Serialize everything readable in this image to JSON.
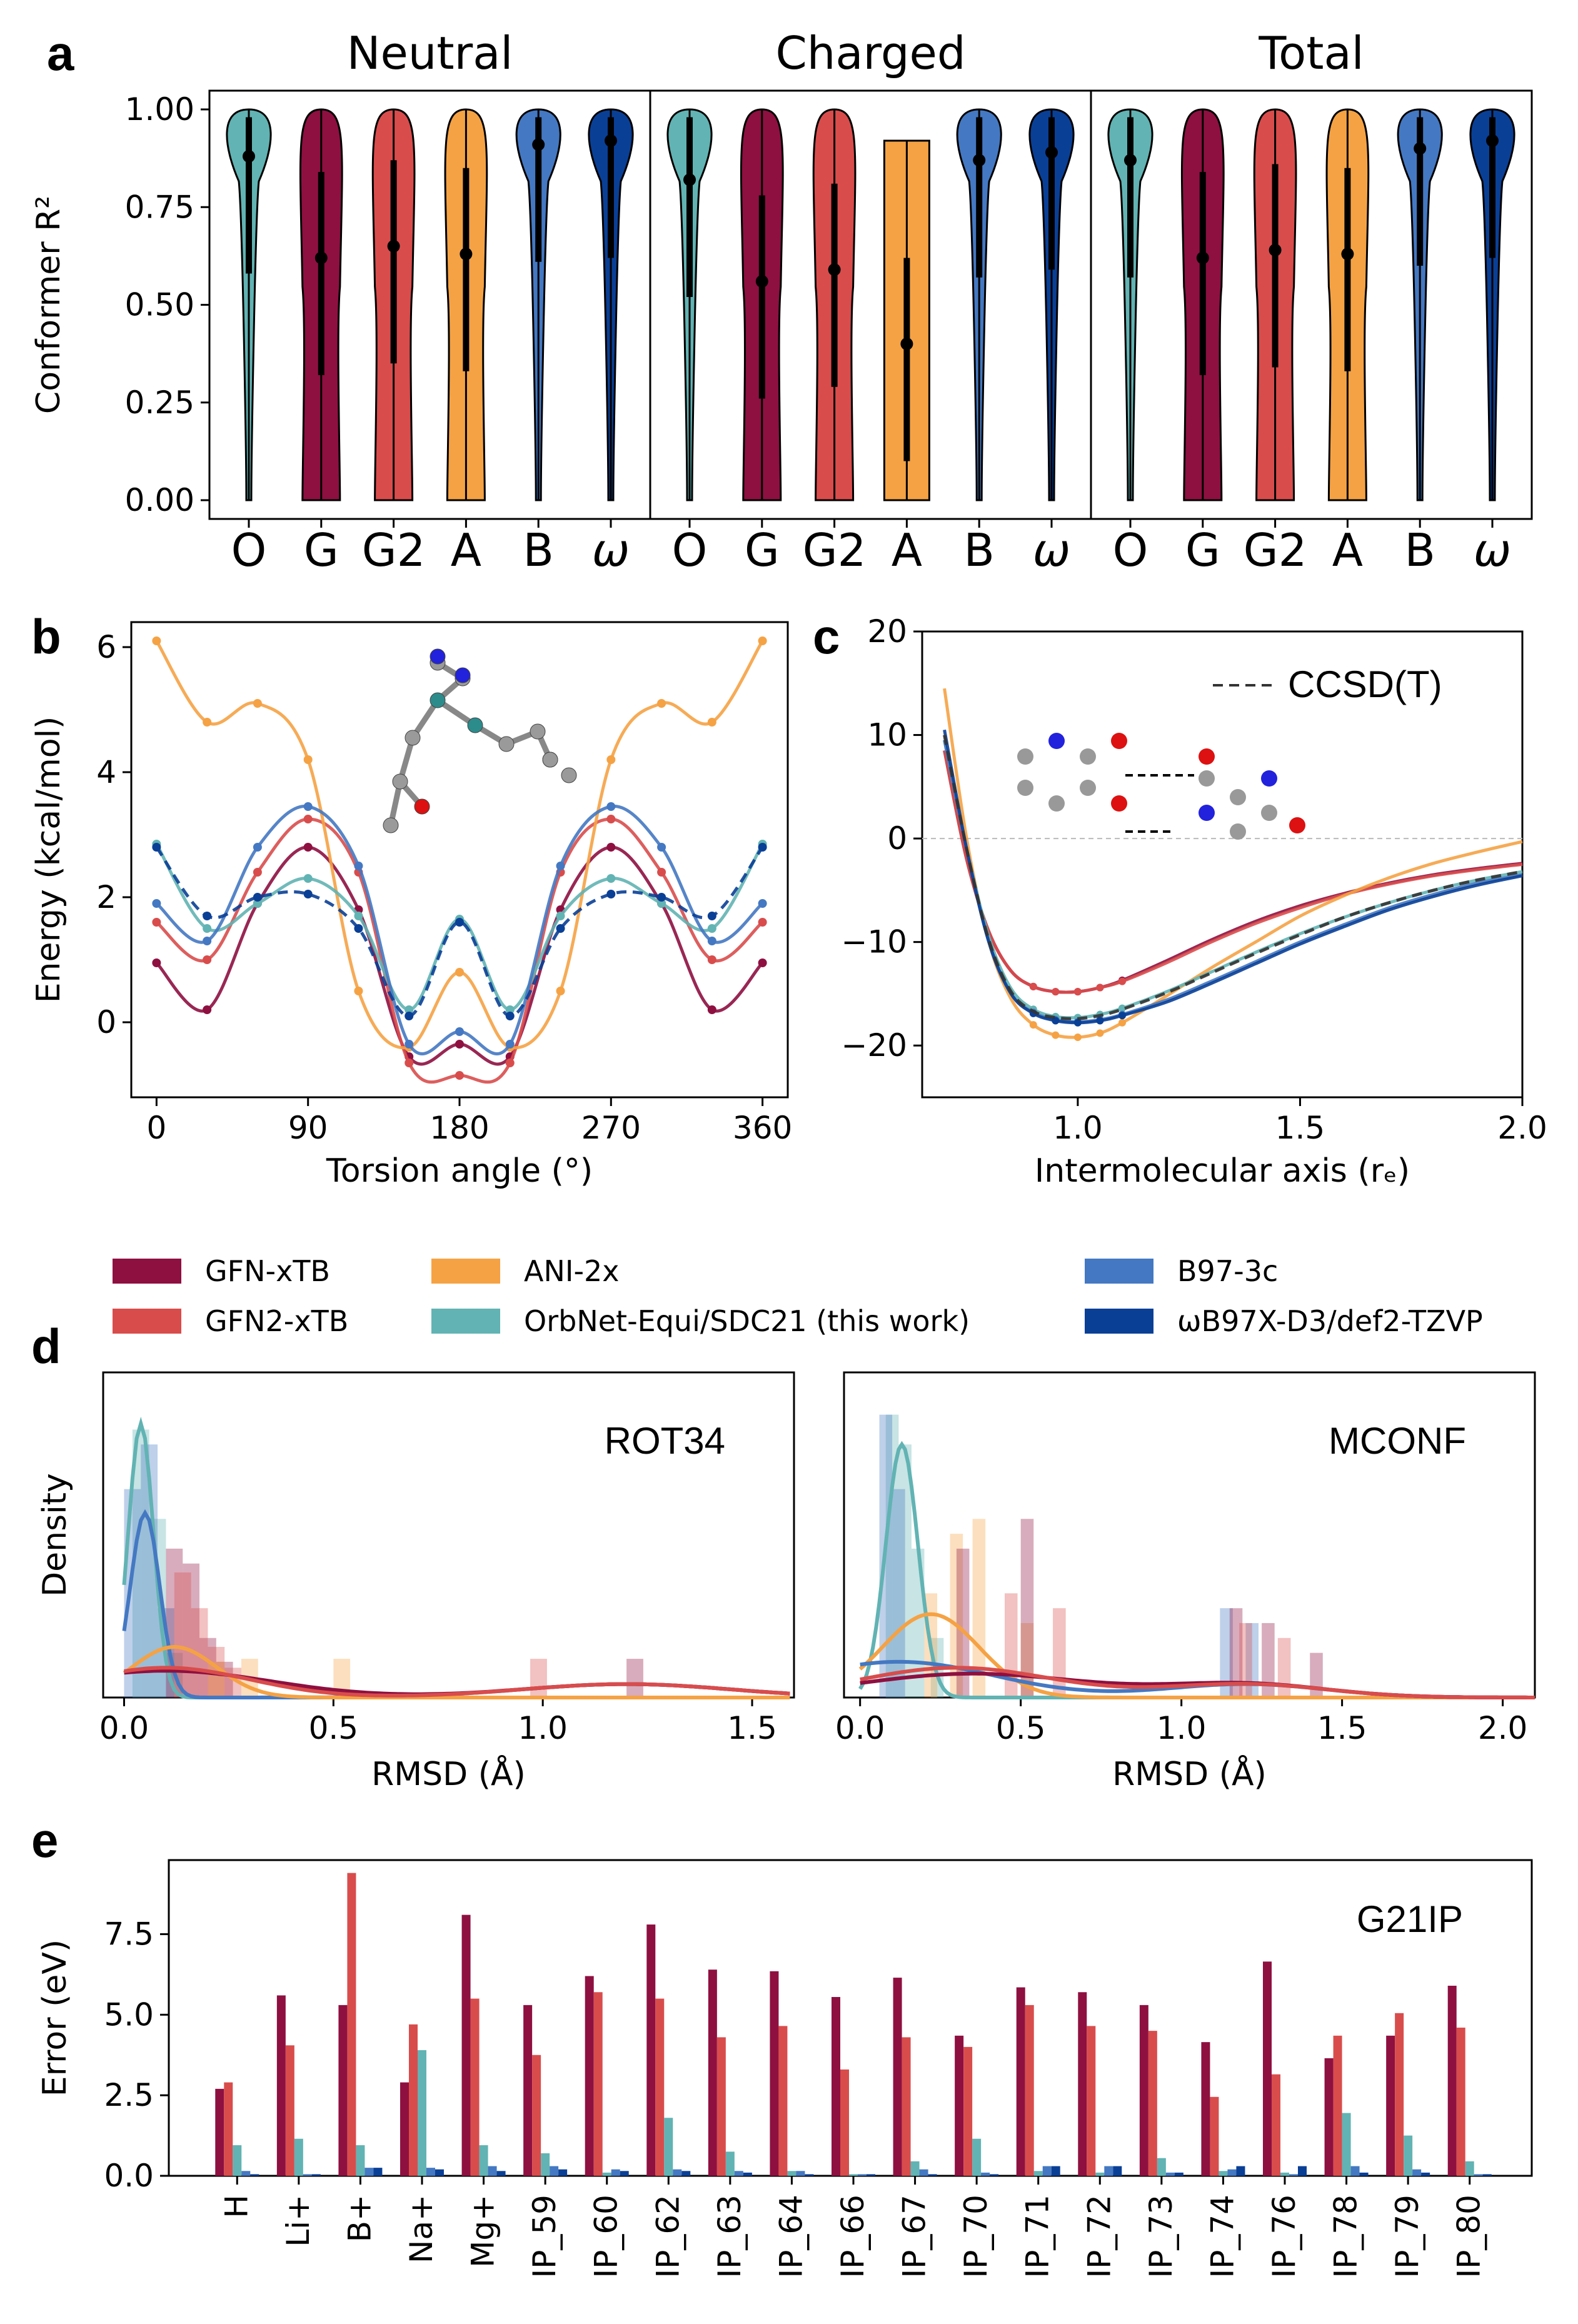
{
  "colors": {
    "GFN-xTB": "#8e1040",
    "GFN2-xTB": "#d94c4c",
    "ANI-2x": "#f5a244",
    "OrbNet": "#62b3b3",
    "B97-3c": "#4478c2",
    "wB97X": "#0a3f96"
  },
  "legend": {
    "items": [
      {
        "key": "GFN-xTB",
        "label": "GFN-xTB"
      },
      {
        "key": "GFN2-xTB",
        "label": "GFN2-xTB"
      },
      {
        "key": "ANI-2x",
        "label": "ANI-2x"
      },
      {
        "key": "OrbNet",
        "label": "OrbNet-Equi/SDC21 (this work)"
      },
      {
        "key": "B97-3c",
        "label": "B97-3c"
      },
      {
        "key": "wB97X",
        "label": "ωB97X-D3/def2-TZVP"
      }
    ]
  },
  "chart_data": [
    {
      "panel": "a",
      "type": "violin",
      "ylabel": "Conformer R²",
      "ylim": [
        0,
        1
      ],
      "yticks": [
        "0.00",
        "0.25",
        "0.50",
        "0.75",
        "1.00"
      ],
      "groups": [
        "Neutral",
        "Charged",
        "Total"
      ],
      "categories": [
        "O",
        "G",
        "G2",
        "A",
        "B",
        "ω"
      ],
      "medians": {
        "Neutral": [
          0.88,
          0.62,
          0.65,
          0.63,
          0.91,
          0.92
        ],
        "Charged": [
          0.82,
          0.56,
          0.59,
          0.4,
          0.87,
          0.89
        ],
        "Total": [
          0.87,
          0.62,
          0.64,
          0.63,
          0.9,
          0.92
        ]
      }
    },
    {
      "panel": "b",
      "type": "line",
      "xlabel": "Torsion angle (°)",
      "ylabel": "Energy (kcal/mol)",
      "xlim": [
        0,
        360
      ],
      "ylim": [
        -1.2,
        6.4
      ],
      "xticks": [
        0,
        90,
        180,
        270,
        360
      ],
      "yticks": [
        0,
        2,
        4,
        6
      ],
      "x": [
        0,
        30,
        60,
        90,
        120,
        150,
        180,
        210,
        240,
        270,
        300,
        330,
        360
      ],
      "series": [
        {
          "key": "GFN-xTB",
          "values": [
            0.95,
            0.2,
            1.9,
            2.8,
            1.8,
            -0.55,
            -0.35,
            -0.55,
            1.8,
            2.8,
            1.9,
            0.2,
            0.95
          ]
        },
        {
          "key": "GFN2-xTB",
          "values": [
            1.6,
            1.0,
            2.4,
            3.25,
            2.4,
            -0.65,
            -0.85,
            -0.65,
            2.4,
            3.25,
            2.4,
            1.0,
            1.6
          ]
        },
        {
          "key": "ANI-2x",
          "values": [
            6.1,
            4.8,
            5.1,
            4.2,
            0.5,
            -0.4,
            0.8,
            -0.4,
            0.5,
            4.2,
            5.1,
            4.8,
            6.1
          ]
        },
        {
          "key": "OrbNet",
          "values": [
            2.85,
            1.5,
            1.9,
            2.3,
            1.7,
            0.2,
            1.65,
            0.2,
            1.7,
            2.3,
            1.9,
            1.5,
            2.85
          ]
        },
        {
          "key": "B97-3c",
          "values": [
            1.9,
            1.3,
            2.8,
            3.45,
            2.5,
            -0.35,
            -0.15,
            -0.35,
            2.5,
            3.45,
            2.8,
            1.3,
            1.9
          ]
        },
        {
          "key": "wB97X",
          "values": [
            2.8,
            1.7,
            2.0,
            2.05,
            1.5,
            0.1,
            1.6,
            0.1,
            1.5,
            2.05,
            2.0,
            1.7,
            2.8
          ],
          "dashed": true
        }
      ]
    },
    {
      "panel": "c",
      "type": "line",
      "xlabel": "Intermolecular axis (rₑ)",
      "xlim": [
        0.65,
        2.0
      ],
      "ylim": [
        -25,
        20
      ],
      "xticks": [
        "1.0",
        "1.5",
        "2.0"
      ],
      "yticks": [
        "−20",
        "−10",
        "0",
        "10",
        "20"
      ],
      "legend_label": "CCSD(T)",
      "x": [
        0.7,
        0.75,
        0.8,
        0.85,
        0.9,
        0.95,
        1.0,
        1.05,
        1.1,
        1.2,
        1.3,
        1.4,
        1.5,
        1.6,
        1.7,
        1.8,
        1.9,
        2.0
      ],
      "series": [
        {
          "key": "GFN-xTB",
          "values": [
            8.5,
            -2,
            -9,
            -12.8,
            -14.3,
            -14.8,
            -14.8,
            -14.4,
            -13.7,
            -11.8,
            -9.8,
            -8.0,
            -6.5,
            -5.3,
            -4.3,
            -3.5,
            -2.9,
            -2.4
          ]
        },
        {
          "key": "GFN2-xTB",
          "values": [
            8.5,
            -2,
            -9,
            -12.8,
            -14.3,
            -14.8,
            -14.8,
            -14.4,
            -13.8,
            -12.0,
            -10.0,
            -8.2,
            -6.7,
            -5.4,
            -4.4,
            -3.6,
            -3.0,
            -2.5
          ]
        },
        {
          "key": "ANI-2x",
          "values": [
            14.5,
            0,
            -10,
            -15.5,
            -18,
            -19,
            -19.2,
            -18.8,
            -17.8,
            -15.2,
            -12.5,
            -10,
            -7.5,
            -5.5,
            -3.8,
            -2.4,
            -1.3,
            -0.3
          ]
        },
        {
          "key": "OrbNet",
          "values": [
            9.5,
            -1,
            -9.5,
            -14.5,
            -16.5,
            -17.2,
            -17.3,
            -17.0,
            -16.4,
            -14.8,
            -12.9,
            -11.0,
            -9.2,
            -7.6,
            -6.2,
            -5.0,
            -4.0,
            -3.2
          ]
        },
        {
          "key": "B97-3c",
          "values": [
            9.5,
            -1,
            -10,
            -15,
            -16.8,
            -17.5,
            -17.7,
            -17.5,
            -17.0,
            -15.6,
            -13.8,
            -11.9,
            -10.0,
            -8.3,
            -6.7,
            -5.4,
            -4.3,
            -3.5
          ]
        },
        {
          "key": "wB97X",
          "values": [
            10.5,
            -1,
            -10,
            -15,
            -16.9,
            -17.6,
            -17.8,
            -17.6,
            -17.1,
            -15.8,
            -14.0,
            -12.1,
            -10.2,
            -8.5,
            -6.9,
            -5.6,
            -4.5,
            -3.6
          ]
        },
        {
          "key": "CCSD(T)",
          "values": [
            10,
            -1,
            -9.8,
            -14.8,
            -16.7,
            -17.3,
            -17.4,
            -17.1,
            -16.5,
            -14.9,
            -13.0,
            -11.1,
            -9.3,
            -7.6,
            -6.2,
            -5.0,
            -4.0,
            -3.2
          ],
          "dashed": true
        }
      ]
    },
    {
      "panel": "d-left",
      "type": "density",
      "title": "ROT34",
      "xlabel": "RMSD (Å)",
      "ylabel": "Density",
      "xlim": [
        -0.05,
        1.6
      ],
      "xticks": [
        "0.0",
        "0.5",
        "1.0",
        "1.5"
      ],
      "hist": [
        {
          "key": "OrbNet",
          "x": [
            0.02,
            0.06,
            0.1
          ],
          "h": [
            0.9,
            0.6,
            0.15
          ]
        },
        {
          "key": "B97-3c",
          "x": [
            0.0,
            0.04,
            0.08
          ],
          "h": [
            0.7,
            0.85,
            0.3
          ]
        },
        {
          "key": "GFN-xTB",
          "x": [
            0.1,
            0.14,
            0.18,
            0.22,
            1.2
          ],
          "h": [
            0.5,
            0.45,
            0.2,
            0.12,
            0.13
          ]
        },
        {
          "key": "GFN2-xTB",
          "x": [
            0.12,
            0.16,
            0.2,
            0.24,
            0.97
          ],
          "h": [
            0.42,
            0.3,
            0.17,
            0.1,
            0.13
          ]
        },
        {
          "key": "ANI-2x",
          "x": [
            0.2,
            0.28,
            0.5
          ],
          "h": [
            0.12,
            0.13,
            0.13
          ]
        }
      ],
      "kde": [
        {
          "key": "OrbNet",
          "peak_x": 0.04,
          "peak": 0.92,
          "width": 0.03
        },
        {
          "key": "B97-3c",
          "peak_x": 0.05,
          "peak": 0.62,
          "width": 0.035
        },
        {
          "key": "ANI-2x",
          "peak_x": 0.12,
          "peak": 0.17,
          "width": 0.1
        },
        {
          "key": "GFN-xTB",
          "peak_x": 0.1,
          "peak": 0.09,
          "width": 0.25
        },
        {
          "key": "GFN2-xTB",
          "peak_x": 0.1,
          "peak": 0.1,
          "width": 0.2
        }
      ]
    },
    {
      "panel": "d-right",
      "type": "density",
      "title": "MCONF",
      "xlabel": "RMSD (Å)",
      "xlim": [
        -0.05,
        2.1
      ],
      "xticks": [
        "0.0",
        "0.5",
        "1.0",
        "1.5",
        "2.0"
      ],
      "hist": [
        {
          "key": "OrbNet",
          "x": [
            0.08,
            0.12,
            0.16,
            0.22
          ],
          "h": [
            0.95,
            0.85,
            0.5,
            0.2
          ]
        },
        {
          "key": "B97-3c",
          "x": [
            0.06,
            0.1,
            1.12,
            1.2
          ],
          "h": [
            0.95,
            0.7,
            0.3,
            0.25
          ]
        },
        {
          "key": "ANI-2x",
          "x": [
            0.2,
            0.28,
            0.35,
            0.5
          ],
          "h": [
            0.35,
            0.55,
            0.6,
            0.25
          ]
        },
        {
          "key": "GFN-xTB",
          "x": [
            0.3,
            0.5,
            1.15,
            1.25,
            1.4
          ],
          "h": [
            0.5,
            0.6,
            0.3,
            0.25,
            0.15
          ]
        },
        {
          "key": "GFN2-xTB",
          "x": [
            0.45,
            0.6,
            1.18,
            1.3
          ],
          "h": [
            0.35,
            0.3,
            0.25,
            0.2
          ]
        }
      ],
      "kde": [
        {
          "key": "OrbNet",
          "peak_x": 0.13,
          "peak": 0.85,
          "width": 0.05
        },
        {
          "key": "ANI-2x",
          "peak_x": 0.22,
          "peak": 0.28,
          "width": 0.15
        },
        {
          "key": "B97-3c",
          "peak_x": 0.12,
          "peak": 0.12,
          "width": 0.3
        },
        {
          "key": "GFN-xTB",
          "peak_x": 0.35,
          "peak": 0.08,
          "width": 0.35
        },
        {
          "key": "GFN2-xTB",
          "peak_x": 0.3,
          "peak": 0.1,
          "width": 0.3
        }
      ]
    },
    {
      "panel": "e",
      "type": "bar",
      "title": "G21IP",
      "ylabel": "Error (eV)",
      "ylim": [
        0,
        9.8
      ],
      "yticks": [
        "0.0",
        "2.5",
        "5.0",
        "7.5"
      ],
      "categories": [
        "H",
        "Li+",
        "B+",
        "Na+",
        "Mg+",
        "IP_59",
        "IP_60",
        "IP_62",
        "IP_63",
        "IP_64",
        "IP_66",
        "IP_67",
        "IP_70",
        "IP_71",
        "IP_72",
        "IP_73",
        "IP_74",
        "IP_76",
        "IP_78",
        "IP_79",
        "IP_80"
      ],
      "series": [
        {
          "key": "GFN-xTB",
          "values": [
            2.7,
            5.6,
            5.3,
            2.9,
            8.1,
            5.3,
            6.2,
            7.8,
            6.4,
            6.35,
            5.55,
            6.15,
            4.35,
            5.85,
            5.7,
            5.3,
            4.15,
            6.65,
            3.65,
            4.35,
            5.9
          ]
        },
        {
          "key": "GFN2-xTB",
          "values": [
            2.9,
            4.05,
            9.4,
            4.7,
            5.5,
            3.75,
            5.7,
            5.5,
            4.3,
            4.65,
            3.3,
            4.3,
            4.0,
            5.3,
            4.65,
            4.5,
            2.45,
            3.15,
            4.35,
            5.05,
            4.6
          ]
        },
        {
          "key": "OrbNet",
          "values": [
            0.95,
            1.15,
            0.95,
            3.9,
            0.95,
            0.7,
            0.1,
            1.8,
            0.75,
            0.15,
            0.05,
            0.45,
            1.15,
            0.15,
            0.1,
            0.55,
            0.15,
            0.1,
            1.95,
            1.25,
            0.45
          ]
        },
        {
          "key": "B97-3c",
          "values": [
            0.15,
            0.05,
            0.25,
            0.25,
            0.3,
            0.3,
            0.2,
            0.2,
            0.15,
            0.15,
            0.05,
            0.2,
            0.1,
            0.3,
            0.3,
            0.1,
            0.2,
            0.05,
            0.3,
            0.2,
            0.05
          ]
        },
        {
          "key": "wB97X",
          "values": [
            0.05,
            0.05,
            0.25,
            0.2,
            0.15,
            0.2,
            0.15,
            0.15,
            0.1,
            0.05,
            0.05,
            0.05,
            0.05,
            0.3,
            0.3,
            0.1,
            0.3,
            0.3,
            0.1,
            0.1,
            0.05
          ]
        }
      ]
    }
  ],
  "panel_labels": {
    "a": "a",
    "b": "b",
    "c": "c",
    "d": "d",
    "e": "e"
  }
}
